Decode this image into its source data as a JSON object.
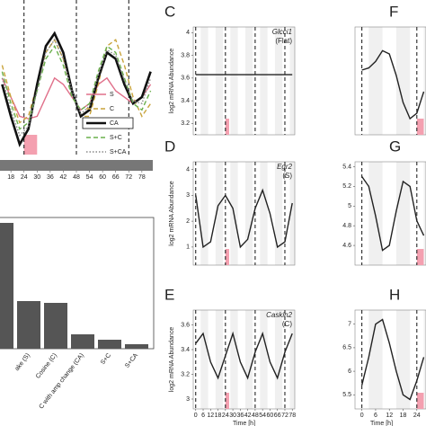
{
  "chart_data": [
    {
      "type": "line",
      "xlim": [
        13,
        83
      ],
      "ylim": [
        0,
        1
      ],
      "xticks": [
        18,
        24,
        30,
        36,
        42,
        48,
        54,
        60,
        66,
        72,
        78
      ],
      "vlines": [
        24,
        48,
        72
      ],
      "x": [
        14,
        18,
        22,
        26,
        30,
        34,
        38,
        42,
        46,
        50,
        54,
        58,
        62,
        66,
        70,
        74,
        78,
        82
      ],
      "series": [
        {
          "name": "S",
          "color": "#e0708a",
          "style": "solid",
          "values": [
            0.6,
            0.45,
            0.3,
            0.28,
            0.3,
            0.45,
            0.6,
            0.55,
            0.45,
            0.35,
            0.4,
            0.55,
            0.6,
            0.5,
            0.45,
            0.4,
            0.45,
            0.55
          ]
        },
        {
          "name": "C",
          "color": "#c9a43c",
          "style": "dashed",
          "values": [
            0.7,
            0.45,
            0.25,
            0.3,
            0.55,
            0.8,
            0.9,
            0.75,
            0.5,
            0.3,
            0.3,
            0.55,
            0.85,
            0.9,
            0.7,
            0.45,
            0.3,
            0.4
          ]
        },
        {
          "name": "CA",
          "color": "#111111",
          "style": "bold",
          "values": [
            0.55,
            0.3,
            0.08,
            0.2,
            0.55,
            0.85,
            0.95,
            0.8,
            0.5,
            0.3,
            0.35,
            0.6,
            0.8,
            0.75,
            0.55,
            0.4,
            0.45,
            0.65
          ]
        },
        {
          "name": "S+C",
          "color": "#6ab04c",
          "style": "dashed",
          "values": [
            0.65,
            0.4,
            0.2,
            0.25,
            0.5,
            0.75,
            0.85,
            0.7,
            0.45,
            0.35,
            0.4,
            0.65,
            0.85,
            0.8,
            0.6,
            0.4,
            0.35,
            0.5
          ]
        },
        {
          "name": "S+CA",
          "color": "#888888",
          "style": "dotted",
          "values": [
            0.6,
            0.35,
            0.15,
            0.22,
            0.5,
            0.8,
            0.9,
            0.75,
            0.5,
            0.32,
            0.38,
            0.62,
            0.82,
            0.78,
            0.58,
            0.42,
            0.4,
            0.6
          ]
        }
      ]
    },
    {
      "type": "bar",
      "ylim": [
        0,
        140
      ],
      "color": "#555555",
      "categories": [
        null,
        "ake (S)",
        "Cosine (C)",
        "C with amp change (CA)",
        "S+C",
        "S+CA"
      ],
      "values": [
        140,
        53,
        51,
        16,
        10,
        5
      ]
    },
    {
      "type": "line",
      "letter": "C",
      "gene": "Glcci1",
      "gene_class": "(Flat)",
      "ylabel": "log2 mRNA Abundance",
      "xlim": [
        -2,
        80
      ],
      "ylim": [
        3.1,
        4.05
      ],
      "yticks": [
        3.2,
        3.4,
        3.6,
        3.8,
        4.0
      ],
      "vlines": [
        0,
        24,
        48,
        72
      ],
      "x": [
        0,
        78
      ],
      "values": [
        3.63,
        3.63
      ],
      "color": "#222222"
    },
    {
      "type": "line",
      "letter": "D",
      "gene": "Egr2",
      "gene_class": "(S)",
      "ylabel": "log2 mRNA Abundance",
      "xlim": [
        -2,
        80
      ],
      "ylim": [
        0.3,
        4.3
      ],
      "yticks": [
        1,
        2,
        3,
        4
      ],
      "vlines": [
        0,
        24,
        48,
        72
      ],
      "x": [
        0,
        6,
        12,
        18,
        24,
        30,
        36,
        42,
        48,
        54,
        60,
        66,
        72,
        78
      ],
      "values": [
        3.0,
        1.0,
        1.2,
        2.6,
        3.0,
        2.5,
        1.0,
        1.3,
        2.5,
        3.2,
        2.3,
        1.0,
        1.2,
        2.7
      ],
      "color": "#222222"
    },
    {
      "type": "line",
      "letter": "E",
      "gene": "Caskin2",
      "gene_class": "(C)",
      "ylabel": "log2 mRNA Abundance",
      "xlabel": "Time [h]",
      "xlim": [
        -2,
        80
      ],
      "ylim": [
        2.92,
        3.72
      ],
      "yticks": [
        3.0,
        3.2,
        3.4,
        3.6
      ],
      "vlines": [
        0,
        24,
        48,
        72
      ],
      "xticks": [
        0,
        6,
        12,
        18,
        24,
        30,
        36,
        42,
        48,
        54,
        60,
        66,
        72,
        78
      ],
      "x": [
        0,
        6,
        12,
        18,
        24,
        30,
        36,
        42,
        48,
        54,
        60,
        66,
        72,
        78
      ],
      "values": [
        3.45,
        3.53,
        3.3,
        3.17,
        3.35,
        3.53,
        3.3,
        3.17,
        3.38,
        3.53,
        3.3,
        3.17,
        3.38,
        3.53
      ],
      "color": "#222222"
    },
    {
      "type": "line",
      "letter": "F",
      "xlim": [
        -3,
        28
      ],
      "ylim": [
        0,
        1
      ],
      "vlines": [
        0,
        24
      ],
      "x": [
        0,
        3,
        6,
        9,
        12,
        15,
        18,
        21,
        24,
        27
      ],
      "values": [
        0.6,
        0.62,
        0.68,
        0.78,
        0.75,
        0.55,
        0.3,
        0.15,
        0.2,
        0.4
      ],
      "color": "#222222"
    },
    {
      "type": "line",
      "letter": "G",
      "xlim": [
        -3,
        28
      ],
      "ylim": [
        4.4,
        5.45
      ],
      "yticks": [
        4.6,
        4.8,
        5.0,
        5.2,
        5.4
      ],
      "vlines": [
        0,
        24
      ],
      "x": [
        0,
        3,
        6,
        9,
        12,
        15,
        18,
        21,
        24,
        27
      ],
      "values": [
        5.3,
        5.2,
        4.9,
        4.55,
        4.6,
        4.95,
        5.25,
        5.2,
        4.85,
        4.7
      ],
      "color": "#222222"
    },
    {
      "type": "line",
      "letter": "H",
      "xlabel": "Time [h]",
      "xlim": [
        -3,
        28
      ],
      "ylim": [
        5.2,
        7.3
      ],
      "yticks": [
        5.5,
        6.0,
        6.5,
        7.0
      ],
      "vlines": [
        0,
        24
      ],
      "xticks": [
        0,
        6,
        12,
        18,
        24
      ],
      "x": [
        0,
        3,
        6,
        9,
        12,
        15,
        18,
        21,
        24,
        27
      ],
      "values": [
        5.7,
        6.3,
        7.0,
        7.1,
        6.6,
        6.0,
        5.5,
        5.4,
        5.8,
        6.3
      ],
      "color": "#222222"
    }
  ]
}
